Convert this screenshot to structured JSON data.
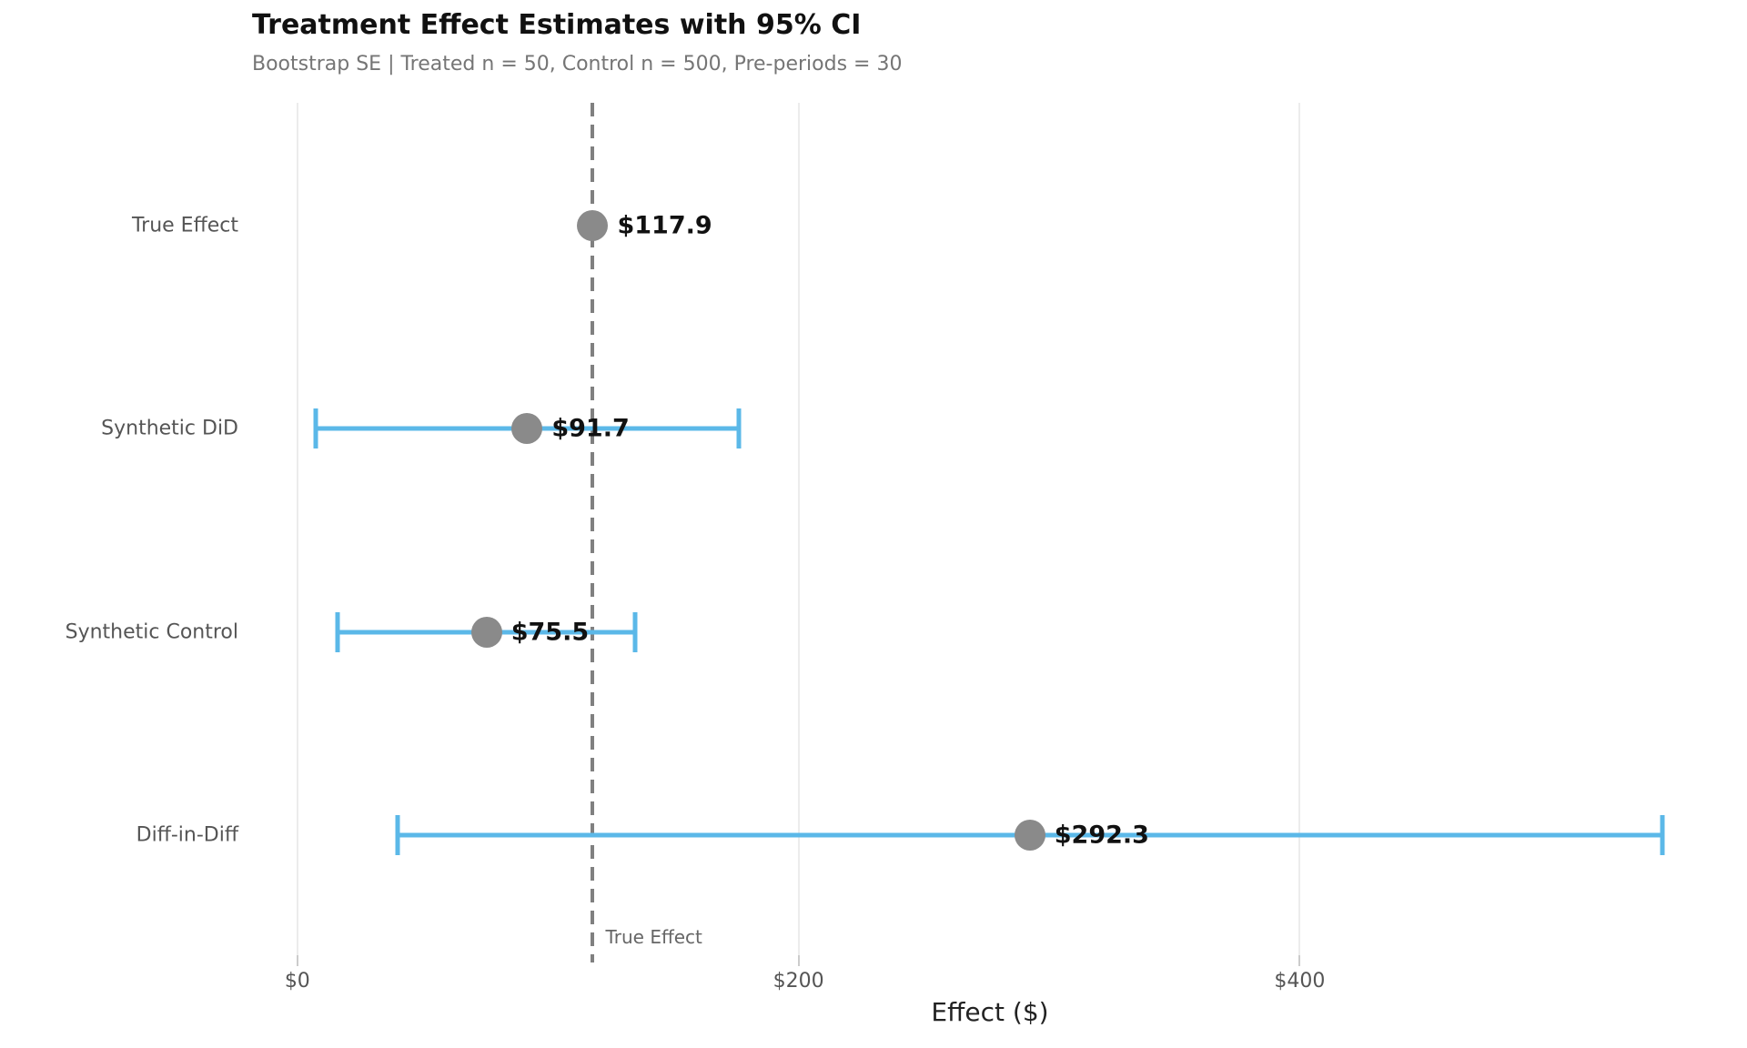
{
  "chart_data": {
    "type": "scatter",
    "variant": "dot-and-whisker forest plot, horizontal error bars",
    "title": "Treatment Effect Estimates with 95% CI",
    "subtitle": "Bootstrap SE | Treated n = 50, Control n = 500, Pre-periods = 30",
    "xlabel": "Effect ($)",
    "xlim": [
      -17,
      564
    ],
    "grid": "vertical gridlines only, light gray",
    "legend": "none",
    "x_ticks": [
      {
        "value": 0,
        "label": "$0"
      },
      {
        "value": 200,
        "label": "$200"
      },
      {
        "value": 400,
        "label": "$400"
      }
    ],
    "reference_line": {
      "value": 117.9,
      "label": "True Effect",
      "style": "dashed",
      "orientation": "vertical"
    },
    "categories": [
      "True Effect",
      "Synthetic DiD",
      "Synthetic Control",
      "Diff-in-Diff"
    ],
    "rows": [
      {
        "category": "True Effect",
        "estimate": 117.9,
        "value_label": "$117.9",
        "ci_low": null,
        "ci_high": null
      },
      {
        "category": "Synthetic DiD",
        "estimate": 91.7,
        "value_label": "$91.7",
        "ci_low": 7.2,
        "ci_high": 176.2
      },
      {
        "category": "Synthetic Control",
        "estimate": 75.5,
        "value_label": "$75.5",
        "ci_low": 16.2,
        "ci_high": 134.8
      },
      {
        "category": "Diff-in-Diff",
        "estimate": 292.3,
        "value_label": "$292.3",
        "ci_low": 39.9,
        "ci_high": 544.7
      }
    ],
    "colors": {
      "ci_bar": "#5BB8E8",
      "point": "#8a8a8a",
      "reference_line": "#808080",
      "gridline": "#ececec",
      "title": "#111111",
      "subtitle": "#757575",
      "axis_text": "#555555",
      "value_label": "#111111",
      "xlabel_text": "#222222",
      "annotation_text": "#666666",
      "background": "#ffffff"
    }
  }
}
